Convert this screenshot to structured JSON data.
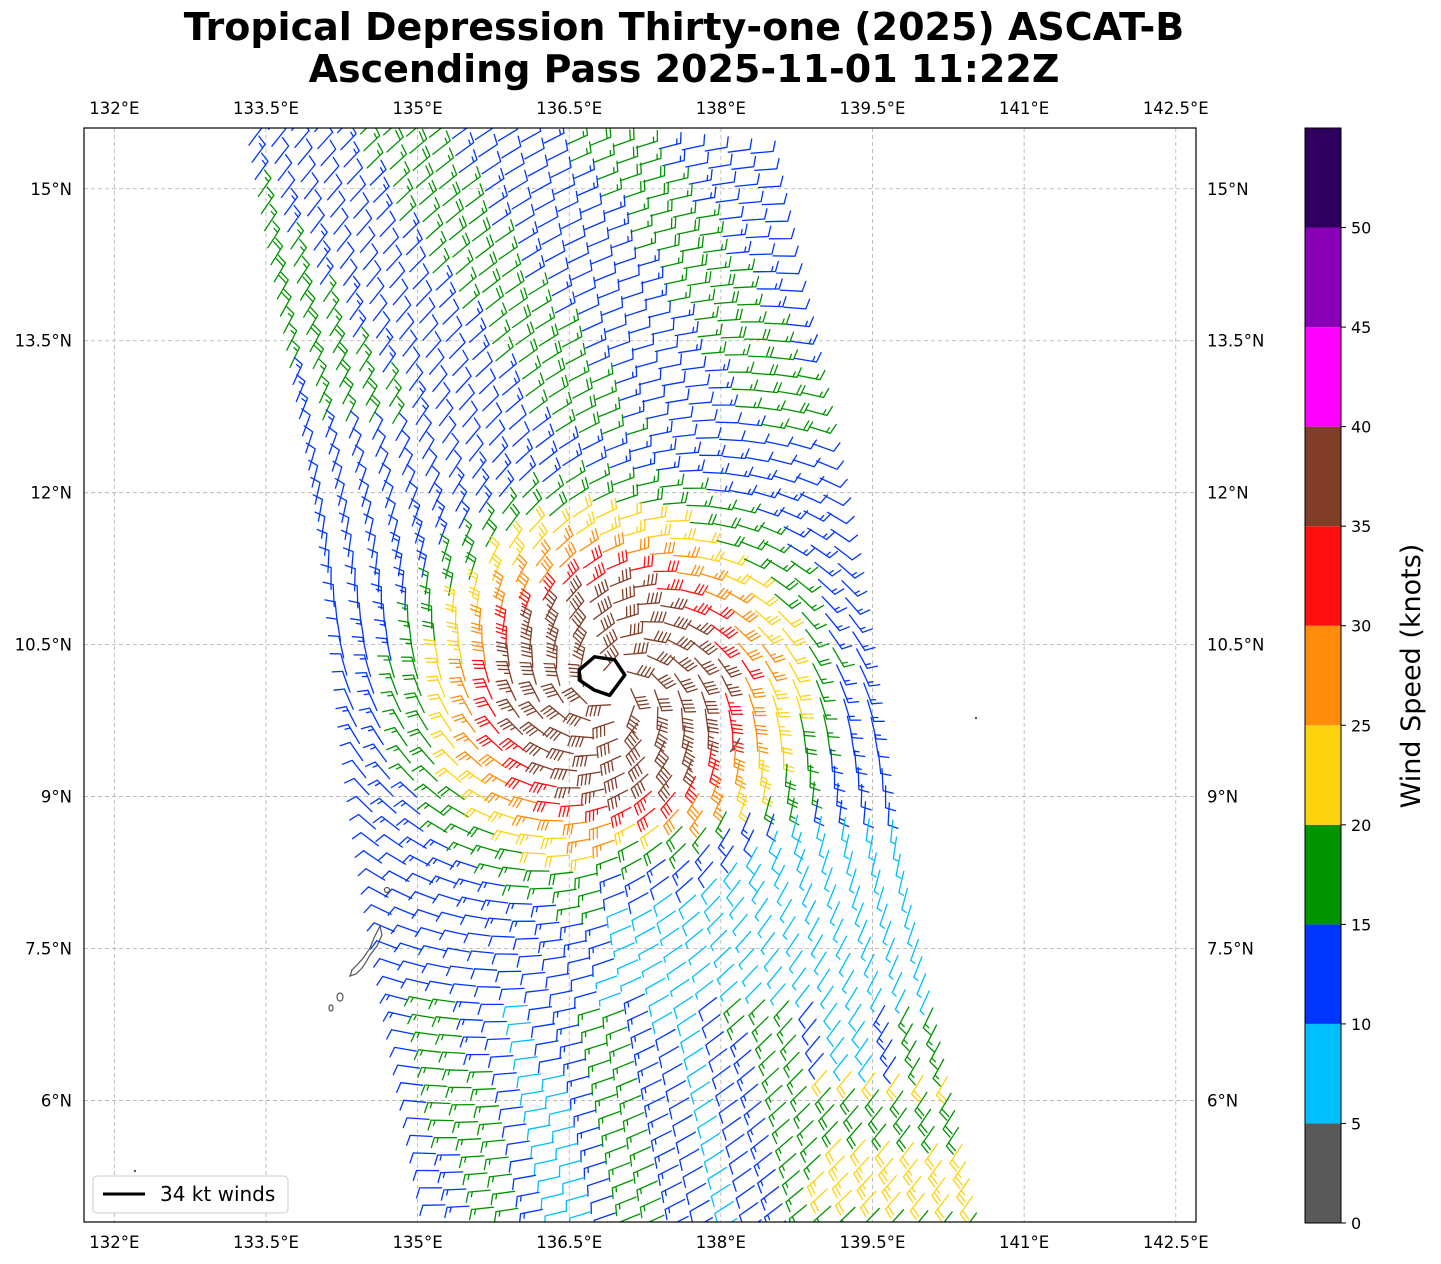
{
  "chart_data": {
    "type": "wind-barb map",
    "title_line1": "Tropical Depression Thirty-one (2025) ASCAT-B",
    "title_line2": "Ascending Pass 2025-11-01 11:22Z",
    "lon_range": [
      131.7,
      142.7
    ],
    "lat_range": [
      4.8,
      15.6
    ],
    "lon_ticks": [
      132,
      133.5,
      135,
      136.5,
      138,
      139.5,
      141,
      142.5
    ],
    "lon_tick_labels": [
      "132°E",
      "133.5°E",
      "135°E",
      "136.5°E",
      "138°E",
      "139.5°E",
      "141°E",
      "142.5°E"
    ],
    "lat_ticks": [
      6,
      7.5,
      9,
      10.5,
      12,
      13.5,
      15
    ],
    "lat_tick_labels": [
      "6°N",
      "7.5°N",
      "9°N",
      "10.5°N",
      "12°N",
      "13.5°N",
      "15°N"
    ],
    "storm_center": {
      "lon": 136.95,
      "lat": 10.05
    },
    "swath": {
      "top_west_lon": 133.3,
      "top_east_lon": 138.3,
      "top_lat": 15.6,
      "bottom_west_lon": 135.3,
      "bottom_east_lon": 140.6,
      "bottom_lat": 4.8
    },
    "thirtyfour_kt_contour": [
      [
        136.6,
        10.25
      ],
      [
        136.75,
        10.38
      ],
      [
        136.95,
        10.35
      ],
      [
        137.05,
        10.2
      ],
      [
        136.9,
        10.0
      ],
      [
        136.75,
        10.05
      ],
      [
        136.6,
        10.15
      ]
    ],
    "colorbar": {
      "label": "Wind Speed (knots)",
      "bounds": [
        0,
        5,
        10,
        15,
        20,
        25,
        30,
        35,
        40,
        45,
        50,
        55
      ],
      "tick_labels": [
        "0",
        "5",
        "10",
        "15",
        "20",
        "25",
        "30",
        "35",
        "40",
        "45",
        "50"
      ],
      "colors": [
        "#595959",
        "#00bfff",
        "#0036ff",
        "#009400",
        "#ffd20f",
        "#ff8c0a",
        "#ff0f0f",
        "#803e29",
        "#ff00ff",
        "#8700b5",
        "#2e005e"
      ]
    },
    "legend": {
      "label": "34 kt winds",
      "placement": "lower-left"
    }
  }
}
